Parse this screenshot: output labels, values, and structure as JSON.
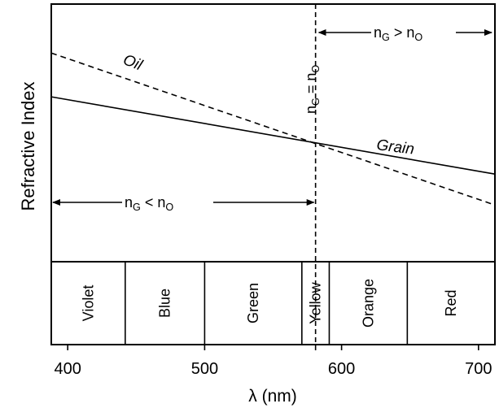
{
  "chart_data": {
    "type": "line",
    "title": "",
    "xlabel": "λ (nm)",
    "ylabel": "Refractive Index",
    "xlim": [
      388,
      712
    ],
    "x_ticks": [
      {
        "value": 400,
        "label": "400"
      },
      {
        "value": 500,
        "label": "500"
      },
      {
        "value": 600,
        "label": "600"
      },
      {
        "value": 700,
        "label": "700"
      }
    ],
    "series": [
      {
        "name": "Oil",
        "style": "dashed",
        "x": [
          388,
          712
        ],
        "y": [
          0.81,
          0.22
        ]
      },
      {
        "name": "Grain",
        "style": "solid",
        "x": [
          388,
          712
        ],
        "y": [
          0.64,
          0.34
        ]
      }
    ],
    "intersection": {
      "x": 581,
      "label_n": "n",
      "label_sub_left": "G",
      "label_eq": " = ",
      "label_sub_right": "O"
    },
    "regions": {
      "left": {
        "x_from": 388,
        "x_to": 581,
        "n": "n",
        "sub_a": "G",
        "op": " < ",
        "sub_b": "O"
      },
      "right": {
        "x_from": 581,
        "x_to": 712,
        "n": "n",
        "sub_a": "G",
        "op": " > ",
        "sub_b": "O"
      }
    },
    "color_bands": [
      {
        "label": "Violet",
        "from": 388,
        "to": 442
      },
      {
        "label": "Blue",
        "from": 442,
        "to": 500
      },
      {
        "label": "Green",
        "from": 500,
        "to": 571
      },
      {
        "label": "Yellow",
        "from": 571,
        "to": 591
      },
      {
        "label": "Orange",
        "from": 591,
        "to": 648
      },
      {
        "label": "Red",
        "from": 648,
        "to": 712
      }
    ],
    "grid": false,
    "colors": {
      "line": "#000000",
      "background": "#ffffff"
    }
  }
}
